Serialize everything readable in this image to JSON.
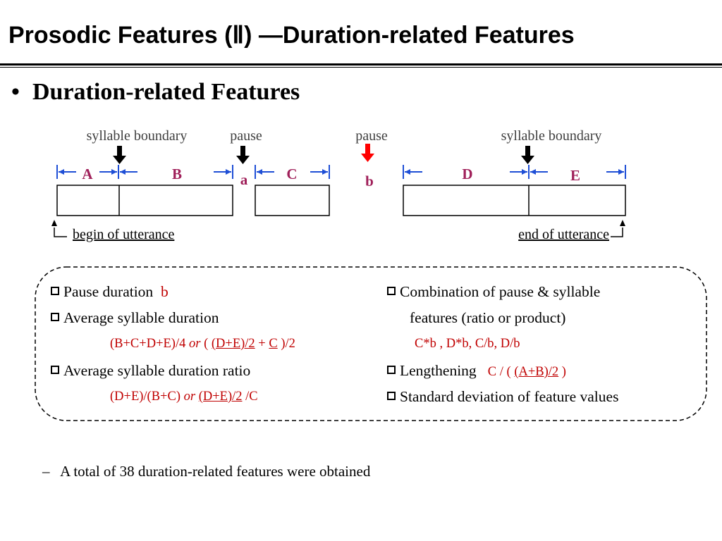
{
  "title": "Prosodic Features (Ⅱ) —Duration-related Features",
  "bullet": {
    "marker": "•",
    "text": "Duration-related Features"
  },
  "diagram": {
    "labels": {
      "syllable_boundary_1": "syllable boundary",
      "pause_a": "pause",
      "pause_b": "pause",
      "syllable_boundary_2": "syllable boundary",
      "seg_A": "A",
      "seg_B": "B",
      "seg_a": "a",
      "seg_C": "C",
      "seg_b": "b",
      "seg_D": "D",
      "seg_E": "E",
      "begin": "begin of utterance",
      "end": "end of utterance"
    }
  },
  "features": {
    "pause_duration": {
      "label": "Pause duration",
      "value": "b"
    },
    "avg_syllable": {
      "label": "Average syllable duration",
      "f1": "(B+C+D+E)/4",
      "or": "or",
      "f2a": "( ",
      "f2b": "(D+E)/2",
      "f2c": " + ",
      "f2d": "C",
      "f2e": " )/2"
    },
    "avg_ratio": {
      "label": "Average syllable duration ratio",
      "f1": "(D+E)/(B+C) ",
      "or": "or",
      "f2a": "(D+E)/2",
      "f2b": " /C"
    },
    "combination": {
      "label": "Combination of pause & syllable",
      "label2": "features (ratio or product)",
      "formula": "C*b , D*b, C/b, D/b"
    },
    "lengthening": {
      "label": "Lengthening",
      "f1": "C / ( ",
      "f2": "(A+B)/2",
      "f3": " )"
    },
    "stddev": {
      "label": "Standard deviation of feature values"
    }
  },
  "note": {
    "marker": "–",
    "text": "A total of 38 duration-related features were obtained"
  },
  "colors": {
    "red": "#c00000",
    "blue": "#1f4fd6",
    "segment_label": "#a0205a"
  }
}
